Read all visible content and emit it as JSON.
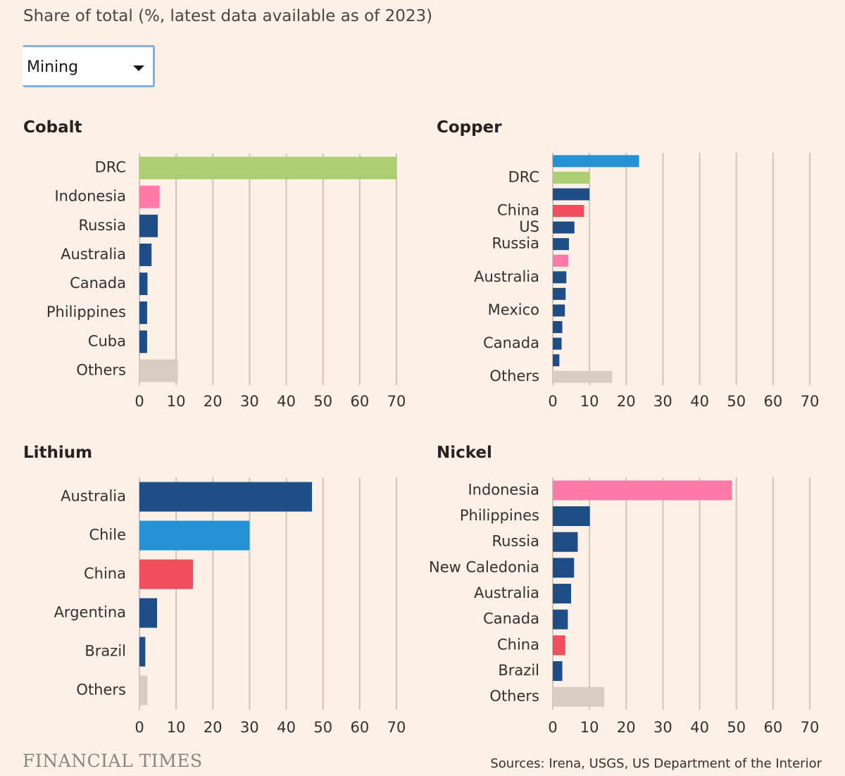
{
  "subtitle": "Share of total (%, latest data available as of 2023)",
  "dropdown": {
    "value": "Mining",
    "icon": "caret-down-icon"
  },
  "brand": "FINANCIAL TIMES",
  "source": "Sources: Irena, USGS, US Department of the Interior",
  "colors": {
    "background": "#fdf0e6",
    "gridline": "#cfc5be",
    "DRC": "#adcf73",
    "Indonesia": "#ff7aa8",
    "China": "#f04e5d",
    "Chile": "#2592d3",
    "other_country": "#1f4e87",
    "Others": "#d9ccc4"
  },
  "chart_data": [
    {
      "type": "bar",
      "title": "Cobalt",
      "xlim": [
        0,
        70
      ],
      "xticks": [
        0,
        10,
        20,
        30,
        40,
        50,
        60,
        70
      ],
      "bars": [
        {
          "label": "DRC",
          "value": 70,
          "color": "#adcf73"
        },
        {
          "label": "Indonesia",
          "value": 5.5,
          "color": "#ff7aa8"
        },
        {
          "label": "Russia",
          "value": 5,
          "color": "#1f4e87"
        },
        {
          "label": "Australia",
          "value": 3.3,
          "color": "#1f4e87"
        },
        {
          "label": "Canada",
          "value": 2.2,
          "color": "#1f4e87"
        },
        {
          "label": "Philippines",
          "value": 2.1,
          "color": "#1f4e87"
        },
        {
          "label": "Cuba",
          "value": 2.1,
          "color": "#1f4e87"
        },
        {
          "label": "Others",
          "value": 10.5,
          "color": "#d9ccc4"
        }
      ]
    },
    {
      "type": "bar",
      "title": "Copper",
      "xlim": [
        0,
        70
      ],
      "xticks": [
        0,
        10,
        20,
        30,
        40,
        50,
        60,
        70
      ],
      "bars": [
        {
          "label": "",
          "value": 23.5,
          "color": "#2592d3"
        },
        {
          "label": "DRC",
          "value": 10,
          "color": "#adcf73"
        },
        {
          "label": "",
          "value": 10,
          "color": "#1f4e87"
        },
        {
          "label": "China",
          "value": 8.5,
          "color": "#f04e5d"
        },
        {
          "label": "US",
          "value": 5.9,
          "color": "#1f4e87"
        },
        {
          "label": "Russia",
          "value": 4.4,
          "color": "#1f4e87"
        },
        {
          "label": "",
          "value": 4.2,
          "color": "#ff7aa8"
        },
        {
          "label": "Australia",
          "value": 3.7,
          "color": "#1f4e87"
        },
        {
          "label": "",
          "value": 3.5,
          "color": "#1f4e87"
        },
        {
          "label": "Mexico",
          "value": 3.3,
          "color": "#1f4e87"
        },
        {
          "label": "",
          "value": 2.6,
          "color": "#1f4e87"
        },
        {
          "label": "Canada",
          "value": 2.4,
          "color": "#1f4e87"
        },
        {
          "label": "",
          "value": 1.8,
          "color": "#1f4e87"
        },
        {
          "label": "Others",
          "value": 16.2,
          "color": "#d9ccc4"
        }
      ]
    },
    {
      "type": "bar",
      "title": "Lithium",
      "xlim": [
        0,
        70
      ],
      "xticks": [
        0,
        10,
        20,
        30,
        40,
        50,
        60,
        70
      ],
      "bars": [
        {
          "label": "Australia",
          "value": 47,
          "color": "#1f4e87"
        },
        {
          "label": "Chile",
          "value": 30,
          "color": "#2592d3"
        },
        {
          "label": "China",
          "value": 14.6,
          "color": "#f04e5d"
        },
        {
          "label": "Argentina",
          "value": 4.8,
          "color": "#1f4e87"
        },
        {
          "label": "Brazil",
          "value": 1.6,
          "color": "#1f4e87"
        },
        {
          "label": "Others",
          "value": 2.2,
          "color": "#d9ccc4"
        }
      ]
    },
    {
      "type": "bar",
      "title": "Nickel",
      "xlim": [
        0,
        70
      ],
      "xticks": [
        0,
        10,
        20,
        30,
        40,
        50,
        60,
        70
      ],
      "bars": [
        {
          "label": "Indonesia",
          "value": 48.8,
          "color": "#ff7aa8"
        },
        {
          "label": "Philippines",
          "value": 10.1,
          "color": "#1f4e87"
        },
        {
          "label": "Russia",
          "value": 6.8,
          "color": "#1f4e87"
        },
        {
          "label": "New Caledonia",
          "value": 5.8,
          "color": "#1f4e87"
        },
        {
          "label": "Australia",
          "value": 5,
          "color": "#1f4e87"
        },
        {
          "label": "Canada",
          "value": 4.1,
          "color": "#1f4e87"
        },
        {
          "label": "China",
          "value": 3.4,
          "color": "#f04e5d"
        },
        {
          "label": "Brazil",
          "value": 2.6,
          "color": "#1f4e87"
        },
        {
          "label": "Others",
          "value": 14,
          "color": "#d9ccc4"
        }
      ]
    }
  ]
}
